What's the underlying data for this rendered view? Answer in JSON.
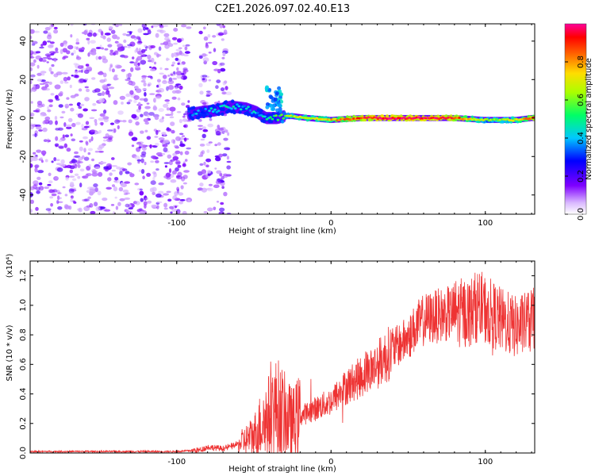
{
  "title": "C2E1.2026.097.02.40.E13",
  "chart_data": [
    {
      "type": "heatmap",
      "xlabel": "Height of straight line (km)",
      "ylabel": "Frequency (Hz)",
      "xlim": [
        -195,
        132
      ],
      "ylim": [
        -50,
        49
      ],
      "xticks": [
        "-100",
        "0",
        "100"
      ],
      "yticks": [
        "-40",
        "-20",
        "0",
        "20",
        "40"
      ],
      "colorbar": {
        "label": "Normalized spectral amplitude",
        "range": [
          0,
          1
        ],
        "ticks": [
          "0.0",
          "0.2",
          "0.4",
          "0.6",
          "0.8"
        ]
      },
      "trace": {
        "x": [
          -92,
          -85,
          -75,
          -65,
          -55,
          -48,
          -42,
          -38,
          -35,
          -30,
          -25,
          -15,
          0,
          20,
          40,
          60,
          80,
          100,
          120,
          130
        ],
        "freq": [
          2,
          3,
          4,
          6,
          5,
          3,
          0,
          0,
          0,
          1,
          1,
          0,
          -1,
          0,
          0,
          0,
          0,
          -1,
          -1,
          0
        ],
        "amplitude": [
          0.35,
          0.35,
          0.4,
          0.45,
          0.4,
          0.4,
          0.45,
          0.5,
          0.55,
          0.6,
          0.65,
          0.7,
          0.75,
          0.9,
          0.95,
          0.95,
          0.9,
          0.6,
          0.7,
          0.85
        ]
      }
    },
    {
      "type": "line",
      "xlabel": "Height of straight line (km)",
      "ylabel": "SNR (10 * v/v)",
      "y_multiplier": "(x10⁴)",
      "xlim": [
        -195,
        132
      ],
      "ylim": [
        0,
        1.3
      ],
      "xticks": [
        "-100",
        "0",
        "100"
      ],
      "yticks": [
        "0.0",
        "0.2",
        "0.4",
        "0.6",
        "0.8",
        "1.0",
        "1.2"
      ],
      "color": "#ee3333",
      "series": [
        {
          "x": [
            -195,
            -150,
            -100,
            -85,
            -80,
            -70,
            -60,
            -50,
            -45,
            -40,
            -35,
            -30,
            -25,
            -20,
            -10,
            0,
            10,
            20,
            30,
            40,
            50,
            55,
            60,
            70,
            80,
            90,
            95,
            100,
            110,
            120,
            132
          ],
          "y": [
            0.01,
            0.01,
            0.01,
            0.02,
            0.04,
            0.03,
            0.06,
            0.12,
            0.2,
            0.25,
            0.3,
            0.25,
            0.2,
            0.25,
            0.3,
            0.35,
            0.45,
            0.52,
            0.6,
            0.7,
            0.78,
            0.85,
            0.9,
            0.93,
            0.95,
            0.95,
            1.0,
            0.97,
            0.9,
            0.85,
            0.9
          ]
        }
      ]
    }
  ]
}
